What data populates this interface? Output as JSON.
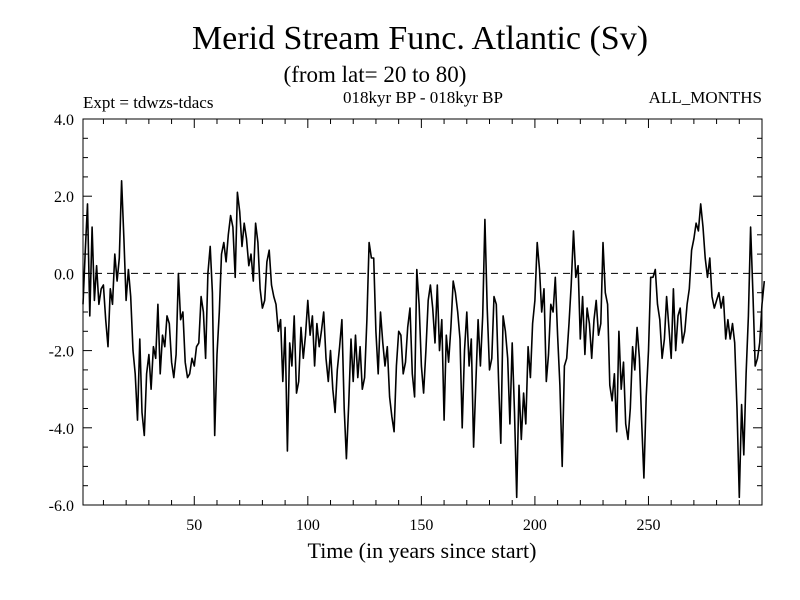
{
  "chart_data": {
    "type": "line",
    "title": "Merid Stream Func. Atlantic (Sv)",
    "subtitle": "(from lat= 20 to 80)",
    "annotation_left": "Expt = tdwzs-tdacs",
    "annotation_center": "018kyr BP - 018kyr BP",
    "annotation_right": "ALL_MONTHS",
    "xlabel": "Time (in years since start)",
    "ylabel": "",
    "xlim": [
      1,
      300
    ],
    "ylim": [
      -6.0,
      4.0
    ],
    "x_ticks": [
      50,
      100,
      150,
      200,
      250
    ],
    "y_ticks": [
      -6.0,
      -4.0,
      -2.0,
      0.0,
      2.0,
      4.0
    ],
    "x_tick_labels": [
      "50",
      "100",
      "150",
      "200",
      "250"
    ],
    "y_tick_labels": [
      "-6.0",
      "-4.0",
      "-2.0",
      "0.0",
      "2.0",
      "4.0"
    ],
    "reference_line": 0.0,
    "reference_line_style": "dashed",
    "grid": false,
    "series": [
      {
        "color": "#000000",
        "x_start": 1,
        "x_step": 1,
        "values": [
          -0.8,
          0.6,
          1.8,
          -1.1,
          1.2,
          -0.7,
          0.2,
          -0.8,
          -0.4,
          -0.3,
          -1.2,
          -1.9,
          -0.4,
          -0.8,
          0.5,
          -0.2,
          0.4,
          2.4,
          0.9,
          -0.7,
          0.1,
          -0.6,
          -2.0,
          -2.6,
          -3.8,
          -1.7,
          -3.6,
          -4.2,
          -2.6,
          -2.1,
          -3.0,
          -1.9,
          -2.2,
          -0.8,
          -2.6,
          -1.6,
          -1.9,
          -1.1,
          -1.3,
          -2.3,
          -2.7,
          -2.1,
          0.0,
          -1.2,
          -1.0,
          -2.3,
          -2.7,
          -2.6,
          -2.2,
          -2.4,
          -1.9,
          -1.8,
          -0.6,
          -1.0,
          -2.2,
          0.0,
          0.7,
          -0.5,
          -4.2,
          -2.1,
          -1.0,
          0.5,
          0.8,
          0.3,
          1.0,
          1.5,
          1.2,
          -0.1,
          2.1,
          1.6,
          0.7,
          1.3,
          0.9,
          0.2,
          0.5,
          -0.2,
          1.3,
          0.8,
          -0.4,
          -0.9,
          -0.7,
          0.3,
          0.6,
          -0.3,
          -0.6,
          -0.8,
          -1.5,
          -1.2,
          -2.8,
          -1.4,
          -4.6,
          -1.8,
          -2.4,
          -1.1,
          -3.1,
          -2.8,
          -1.4,
          -2.2,
          -1.6,
          -0.7,
          -1.6,
          -1.1,
          -2.4,
          -1.3,
          -1.9,
          -1.5,
          -1.0,
          -2.2,
          -2.8,
          -2.0,
          -3.0,
          -3.6,
          -2.5,
          -1.9,
          -1.2,
          -3.5,
          -4.8,
          -3.4,
          -1.7,
          -2.8,
          -1.6,
          -2.7,
          -1.9,
          -3.0,
          -2.7,
          -1.2,
          0.8,
          0.4,
          0.4,
          -1.5,
          -2.6,
          -1.0,
          -1.8,
          -2.4,
          -1.9,
          -3.2,
          -3.7,
          -4.1,
          -2.4,
          -1.5,
          -1.6,
          -2.6,
          -2.3,
          -1.4,
          -0.9,
          -2.6,
          -3.2,
          0.1,
          -0.8,
          -2.4,
          -3.1,
          -2.0,
          -0.7,
          -0.3,
          -0.9,
          -1.8,
          -0.3,
          -2.0,
          -1.2,
          -3.8,
          -1.6,
          -2.3,
          -1.4,
          -0.2,
          -0.5,
          -1.0,
          -1.7,
          -4.0,
          -2.0,
          -1.0,
          -2.4,
          -1.7,
          -4.5,
          -2.8,
          -1.2,
          -2.4,
          -1.1,
          1.4,
          -0.9,
          -2.5,
          -2.2,
          -0.6,
          -0.8,
          -2.8,
          -4.4,
          -1.1,
          -1.5,
          -2.2,
          -3.9,
          -1.8,
          -3.6,
          -5.8,
          -2.9,
          -4.3,
          -3.1,
          -3.9,
          -1.9,
          -2.7,
          -1.3,
          -0.7,
          0.8,
          0.1,
          -1.0,
          -0.4,
          -2.8,
          -2.1,
          -0.8,
          -1.0,
          -0.1,
          -1.6,
          -2.9,
          -5.0,
          -2.4,
          -2.2,
          -1.3,
          -0.3,
          1.1,
          -0.1,
          0.2,
          -1.7,
          -0.6,
          -2.1,
          -0.9,
          -1.3,
          -2.2,
          -1.2,
          -0.7,
          -1.6,
          -1.3,
          0.8,
          -0.5,
          -0.8,
          -2.9,
          -3.3,
          -2.6,
          -4.1,
          -1.5,
          -3.0,
          -2.3,
          -3.9,
          -4.3,
          -3.5,
          -1.9,
          -2.5,
          -1.4,
          -2.2,
          -3.8,
          -5.3,
          -3.2,
          -2.0,
          -0.1,
          -0.1,
          0.1,
          -0.8,
          -1.2,
          -2.2,
          -1.7,
          -0.6,
          -1.4,
          -2.2,
          -0.4,
          -2.0,
          -1.1,
          -0.9,
          -1.8,
          -1.5,
          -0.8,
          -0.4,
          0.6,
          0.9,
          1.3,
          1.1,
          1.8,
          1.2,
          0.4,
          -0.1,
          0.4,
          -0.6,
          -0.9,
          -0.7,
          -0.5,
          -0.9,
          -0.6,
          -1.7,
          -1.2,
          -1.7,
          -1.3,
          -1.8,
          -3.5,
          -5.8,
          -3.4,
          -4.7,
          -2.6,
          -1.1,
          1.2,
          -0.5,
          -2.4,
          -2.2,
          -1.8,
          -0.8,
          -0.2
        ]
      }
    ]
  }
}
